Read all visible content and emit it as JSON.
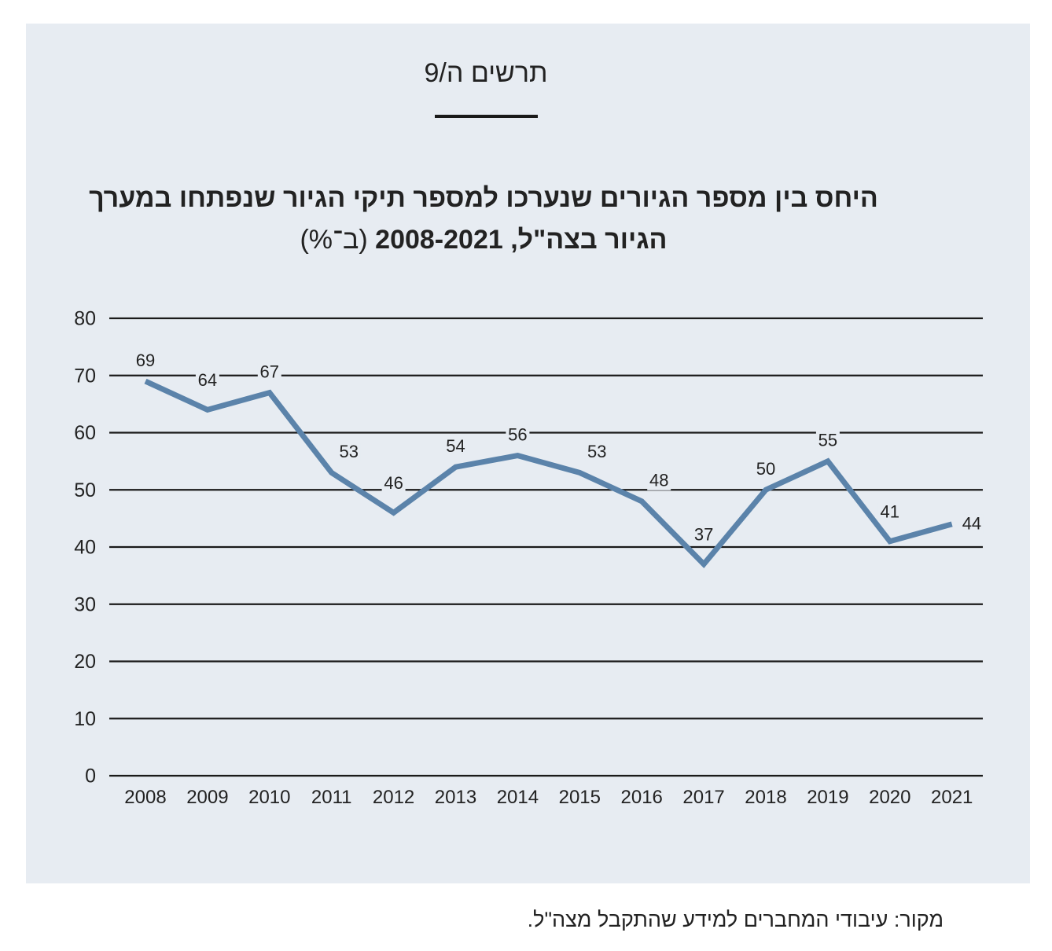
{
  "figure_label": "תרשים ה/9",
  "title": {
    "line1": "היחס בין מספר הגיורים שנערכו למספר תיקי הגיור שנפתחו במערך",
    "line2_bold": "הגיור בצה\"ל, 2008-2021",
    "line2_unit": "(ב־%)"
  },
  "source": "מקור: עיבודי המחברים למידע שהתקבל מצה\"ל.",
  "colors": {
    "background": "#e7ecf2",
    "line": "#5b83aa",
    "grid": "#1a1a1a"
  },
  "chart_data": {
    "type": "line",
    "title": "היחס בין מספר הגיורים שנערכו למספר תיקי הגיור שנפתחו במערך הגיור בצה\"ל, 2008-2021 (ב־%)",
    "xlabel": "",
    "ylabel": "",
    "x": [
      "2008",
      "2009",
      "2010",
      "2011",
      "2012",
      "2013",
      "2014",
      "2015",
      "2016",
      "2017",
      "2018",
      "2019",
      "2020",
      "2021"
    ],
    "series": [
      {
        "values": [
          69,
          64,
          67,
          53,
          46,
          54,
          56,
          53,
          48,
          37,
          50,
          55,
          41,
          44
        ]
      }
    ],
    "ylim": [
      0,
      80
    ],
    "yticks": [
      "0",
      "10",
      "20",
      "30",
      "40",
      "50",
      "60",
      "70",
      "80"
    ],
    "grid": true,
    "legend": "none",
    "data_labels": true
  }
}
